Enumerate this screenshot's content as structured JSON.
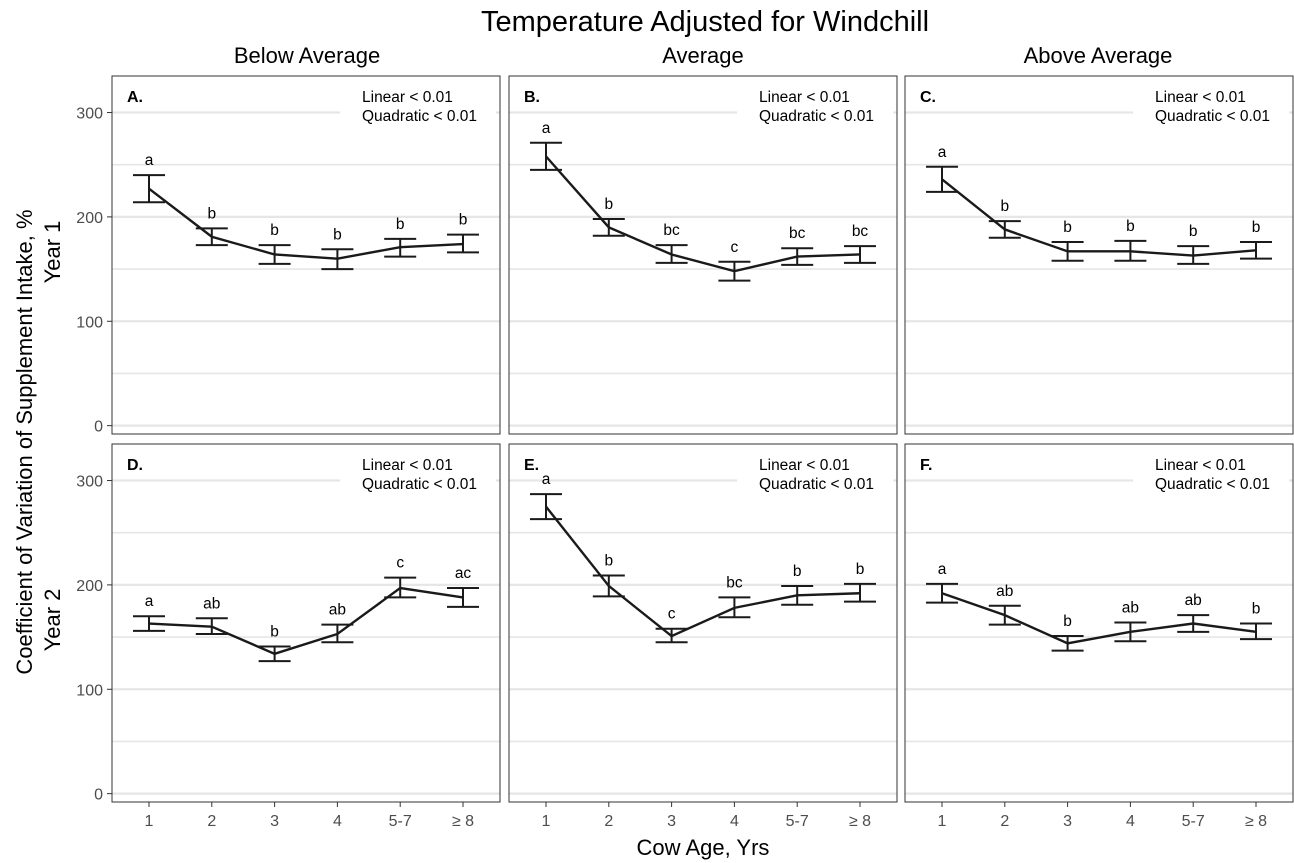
{
  "title": "Temperature Adjusted for Windchill",
  "xlabel": "Cow Age, Yrs",
  "ylabel": "Coefficient of Variation of Supplement Intake, %",
  "column_labels": [
    "Below Average",
    "Average",
    "Above Average"
  ],
  "row_labels": [
    "Year 1",
    "Year 2"
  ],
  "chart_data": {
    "type": "line",
    "categories": [
      "1",
      "2",
      "3",
      "4",
      "5-7",
      "≥ 8"
    ],
    "ylim": [
      -8,
      335
    ],
    "yticks": [
      0,
      100,
      200,
      300
    ],
    "grid": true,
    "panels": [
      {
        "tag": "A.",
        "stat1": "Linear < 0.01",
        "stat2": "Quadratic < 0.01",
        "mean": [
          227,
          181,
          164,
          160,
          171,
          174
        ],
        "lo": [
          214,
          173,
          155,
          150,
          162,
          166
        ],
        "hi": [
          240,
          189,
          173,
          169,
          179,
          183
        ],
        "letters": [
          "a",
          "b",
          "b",
          "b",
          "b",
          "b"
        ]
      },
      {
        "tag": "B.",
        "stat1": "Linear < 0.01",
        "stat2": "Quadratic < 0.01",
        "mean": [
          258,
          190,
          164,
          148,
          162,
          164
        ],
        "lo": [
          245,
          182,
          156,
          139,
          154,
          156
        ],
        "hi": [
          271,
          198,
          173,
          157,
          170,
          172
        ],
        "letters": [
          "a",
          "b",
          "bc",
          "c",
          "bc",
          "bc"
        ]
      },
      {
        "tag": "C.",
        "stat1": "Linear < 0.01",
        "stat2": "Quadratic < 0.01",
        "mean": [
          236,
          188,
          167,
          167,
          163,
          168
        ],
        "lo": [
          224,
          180,
          158,
          158,
          155,
          160
        ],
        "hi": [
          248,
          196,
          176,
          177,
          172,
          176
        ],
        "letters": [
          "a",
          "b",
          "b",
          "b",
          "b",
          "b"
        ]
      },
      {
        "tag": "D.",
        "stat1": "Linear < 0.01",
        "stat2": "Quadratic < 0.01",
        "mean": [
          163,
          160,
          134,
          153,
          197,
          188
        ],
        "lo": [
          156,
          153,
          127,
          145,
          188,
          179
        ],
        "hi": [
          170,
          168,
          141,
          162,
          207,
          197
        ],
        "letters": [
          "a",
          "ab",
          "b",
          "ab",
          "c",
          "ac"
        ]
      },
      {
        "tag": "E.",
        "stat1": "Linear < 0.01",
        "stat2": "Quadratic < 0.01",
        "mean": [
          275,
          199,
          151,
          178,
          190,
          192
        ],
        "lo": [
          263,
          189,
          145,
          169,
          181,
          184
        ],
        "hi": [
          287,
          209,
          158,
          188,
          199,
          201
        ],
        "letters": [
          "a",
          "b",
          "c",
          "bc",
          "b",
          "b"
        ]
      },
      {
        "tag": "F.",
        "stat1": "Linear < 0.01",
        "stat2": "Quadratic < 0.01",
        "mean": [
          192,
          171,
          144,
          155,
          163,
          155
        ],
        "lo": [
          183,
          162,
          137,
          146,
          155,
          148
        ],
        "hi": [
          201,
          180,
          151,
          164,
          171,
          163
        ],
        "letters": [
          "a",
          "ab",
          "b",
          "ab",
          "ab",
          "b"
        ]
      }
    ]
  }
}
